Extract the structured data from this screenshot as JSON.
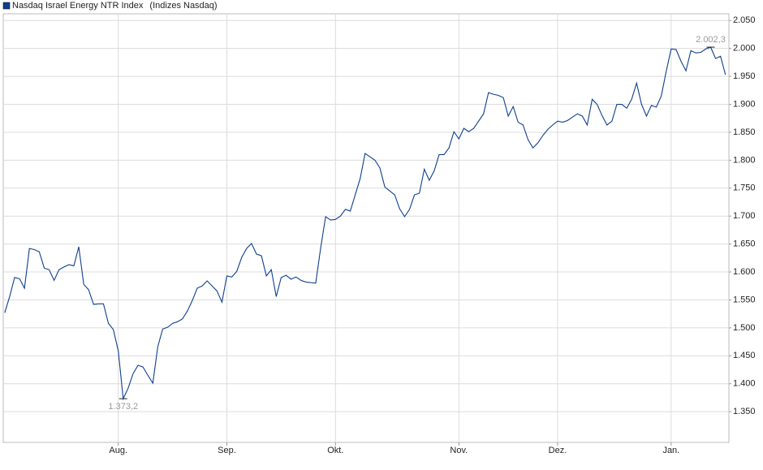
{
  "chart_data": {
    "type": "line",
    "series": [
      {
        "name": "Nasdaq Israel Energy NTR Index",
        "color": "#0d3f8f",
        "values": [
          1527,
          1556,
          1590,
          1588,
          1571,
          1642,
          1640,
          1636,
          1607,
          1604,
          1585,
          1604,
          1609,
          1613,
          1611,
          1645,
          1578,
          1568,
          1542,
          1543,
          1543,
          1508,
          1497,
          1459,
          1373.2,
          1392,
          1418,
          1433,
          1430,
          1415,
          1401,
          1466,
          1498,
          1501,
          1508,
          1511,
          1516,
          1530,
          1549,
          1571,
          1575,
          1584,
          1575,
          1566,
          1546,
          1593,
          1591,
          1601,
          1626,
          1642,
          1651,
          1632,
          1629,
          1593,
          1604,
          1556,
          1590,
          1594,
          1587,
          1591,
          1585,
          1582,
          1581,
          1580,
          1643,
          1699,
          1693,
          1694,
          1700,
          1712,
          1709,
          1738,
          1767,
          1812,
          1806,
          1800,
          1786,
          1752,
          1745,
          1738,
          1713,
          1699,
          1712,
          1738,
          1741,
          1784,
          1764,
          1781,
          1810,
          1810,
          1822,
          1851,
          1838,
          1857,
          1851,
          1857,
          1870,
          1883,
          1921,
          1918,
          1916,
          1912,
          1879,
          1896,
          1868,
          1863,
          1837,
          1822,
          1831,
          1844,
          1855,
          1863,
          1870,
          1868,
          1871,
          1877,
          1883,
          1879,
          1863,
          1909,
          1900,
          1880,
          1863,
          1870,
          1900,
          1900,
          1893,
          1909,
          1938,
          1900,
          1879,
          1898,
          1895,
          1915,
          1959,
          1999,
          1998,
          1977,
          1960,
          1996,
          1992,
          1993,
          1999,
          2002.3,
          1982,
          1986,
          1953
        ],
        "value_labels": [
          null,
          null,
          null,
          null,
          null,
          null,
          null,
          null,
          null,
          null,
          null,
          null,
          null,
          null,
          null,
          null,
          null,
          null,
          null,
          null,
          null,
          null,
          null,
          null,
          "1.373,2",
          null,
          null,
          null,
          null,
          null,
          null,
          null,
          null,
          null,
          null,
          null,
          null,
          null,
          null,
          null,
          null,
          null,
          null,
          null,
          null,
          null,
          null,
          null,
          null,
          null,
          null,
          null,
          null,
          null,
          null,
          null,
          null,
          null,
          null,
          null,
          null,
          null,
          null,
          null,
          null,
          null,
          null,
          null,
          null,
          null,
          null,
          null,
          null,
          null,
          null,
          null,
          null,
          null,
          null,
          null,
          null,
          null,
          null,
          null,
          null,
          null,
          null,
          null,
          null,
          null,
          null,
          null,
          null,
          null,
          null,
          null,
          null,
          null,
          null,
          null,
          null,
          null,
          null,
          null,
          null,
          null,
          null,
          null,
          null,
          null,
          null,
          null,
          null,
          null,
          null,
          null,
          null,
          null,
          null,
          null,
          null,
          null,
          null,
          null,
          null,
          null,
          null,
          null,
          null,
          null,
          null,
          null,
          null,
          null,
          null,
          null,
          null,
          null,
          null,
          null,
          null,
          null,
          null,
          "2.002,3",
          null,
          null,
          null
        ]
      }
    ],
    "source": "(Indizes Nasdaq)",
    "xlim": [
      -0.3,
      146.7
    ],
    "xticks": [
      {
        "value": 23,
        "label": "Aug."
      },
      {
        "value": 45,
        "label": "Sep."
      },
      {
        "value": 67,
        "label": "Okt."
      },
      {
        "value": 92,
        "label": "Nov."
      },
      {
        "value": 112,
        "label": "Dez."
      },
      {
        "value": 135,
        "label": "Jan."
      }
    ],
    "ylim": [
      1295,
      2062
    ],
    "yticks": [
      {
        "value": 1350,
        "label": "1.350"
      },
      {
        "value": 1400,
        "label": "1.400"
      },
      {
        "value": 1450,
        "label": "1.450"
      },
      {
        "value": 1500,
        "label": "1.500"
      },
      {
        "value": 1550,
        "label": "1.550"
      },
      {
        "value": 1600,
        "label": "1.600"
      },
      {
        "value": 1650,
        "label": "1.650"
      },
      {
        "value": 1700,
        "label": "1.700"
      },
      {
        "value": 1750,
        "label": "1.750"
      },
      {
        "value": 1800,
        "label": "1.800"
      },
      {
        "value": 1850,
        "label": "1.850"
      },
      {
        "value": 1900,
        "label": "1.900"
      },
      {
        "value": 1950,
        "label": "1.950"
      },
      {
        "value": 2000,
        "label": "2.000"
      },
      {
        "value": 2050,
        "label": "2.050"
      }
    ],
    "grid": true
  }
}
